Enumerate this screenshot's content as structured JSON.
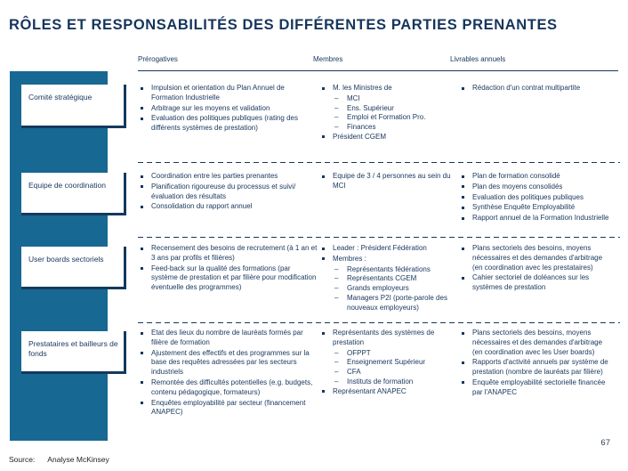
{
  "slide": {
    "title": "RÔLES ET RESPONSABILITÉS DES DIFFÉRENTES PARTIES PRENANTES",
    "source_label": "Source:",
    "source_value": "Analyse McKinsey",
    "page_number": "67"
  },
  "colors": {
    "sidebar_blue": "#176893",
    "navy_text": "#17365d"
  },
  "table": {
    "columns": [
      "Prérogatives",
      "Membres",
      "Livrables annuels"
    ],
    "rows": [
      {
        "label": "Comité stratégique",
        "prerogatives": [
          {
            "text": "Impulsion et orientation du Plan Annuel de Formation Industrielle",
            "level": 1
          },
          {
            "text": "Arbitrage sur les moyens et validation",
            "level": 1
          },
          {
            "text": "Evaluation des politiques publiques (rating des différents systèmes de prestation)",
            "level": 1
          }
        ],
        "membres": [
          {
            "text": "M. les Ministres de",
            "level": 1
          },
          {
            "text": "MCI",
            "level": 2
          },
          {
            "text": "Ens. Supérieur",
            "level": 2
          },
          {
            "text": "Emploi et Formation Pro.",
            "level": 2
          },
          {
            "text": "Finances",
            "level": 2
          },
          {
            "text": "Président CGEM",
            "level": 1
          }
        ],
        "livrables": [
          {
            "text": "Rédaction d'un contrat multipartite",
            "level": 1
          }
        ]
      },
      {
        "label": "Equipe de coordination",
        "prerogatives": [
          {
            "text": "Coordination entre les parties prenantes",
            "level": 1
          },
          {
            "text": "Planification rigoureuse du processus et suivi/évaluation des résultats",
            "level": 1
          },
          {
            "text": "Consolidation du rapport annuel",
            "level": 1
          }
        ],
        "membres": [
          {
            "text": "Equipe de 3 / 4 personnes au sein du MCI",
            "level": 1
          }
        ],
        "livrables": [
          {
            "text": "Plan de formation consolidé",
            "level": 1
          },
          {
            "text": "Plan des moyens consolidés",
            "level": 1
          },
          {
            "text": "Evaluation des politiques publiques",
            "level": 1
          },
          {
            "text": "Synthèse Enquête Employabilité",
            "level": 1
          },
          {
            "text": "Rapport annuel de la Formation Industrielle",
            "level": 1
          }
        ]
      },
      {
        "label": "User boards sectoriels",
        "prerogatives": [
          {
            "text": "Recensement des besoins de recrutement (à 1 an et 3 ans par profils et filières)",
            "level": 1
          },
          {
            "text": "Feed-back sur la qualité des formations (par système de prestation et par filière pour modification éventuelle des programmes)",
            "level": 1
          }
        ],
        "membres": [
          {
            "text": "Leader : Président Fédération",
            "level": 1
          },
          {
            "text": "Membres :",
            "level": 1
          },
          {
            "text": "Représentants fédérations",
            "level": 2
          },
          {
            "text": "Représentants CGEM",
            "level": 2
          },
          {
            "text": "Grands employeurs",
            "level": 2
          },
          {
            "text": "Managers P2I (porte-parole des nouveaux employeurs)",
            "level": 2
          }
        ],
        "livrables": [
          {
            "text": "Plans sectoriels des besoins, moyens nécessaires et des demandes d'arbitrage (en coordination avec les prestataires)",
            "level": 1
          },
          {
            "text": "Cahier sectoriel de doléances sur les systèmes de prestation",
            "level": 1
          }
        ]
      },
      {
        "label": "Prestataires et bailleurs de fonds",
        "prerogatives": [
          {
            "text": "Etat des lieux du nombre de lauréats formés par filière de formation",
            "level": 1
          },
          {
            "text": "Ajustement des effectifs et des programmes sur la base des requêtes adressées par les secteurs industriels",
            "level": 1
          },
          {
            "text": "Remontée des difficultés potentielles (e.g. budgets, contenu pédagogique, formateurs)",
            "level": 1
          },
          {
            "text": "Enquêtes employabilité par secteur (financement ANAPEC)",
            "level": 1
          }
        ],
        "membres": [
          {
            "text": "Représentants des systèmes de prestation",
            "level": 1
          },
          {
            "text": "OFPPT",
            "level": 2
          },
          {
            "text": "Enseignement Supérieur",
            "level": 2
          },
          {
            "text": "CFA",
            "level": 2
          },
          {
            "text": "Instituts de formation",
            "level": 2
          },
          {
            "text": "Représentant ANAPEC",
            "level": 1
          }
        ],
        "livrables": [
          {
            "text": "Plans sectoriels des besoins, moyens nécessaires et des demandes d'arbitrage (en coordination avec les User boards)",
            "level": 1
          },
          {
            "text": "Rapports d'activité annuels par système de prestation (nombre de lauréats par filière)",
            "level": 1
          },
          {
            "text": "Enquête employabilité sectorielle financée par l'ANAPEC",
            "level": 1
          }
        ]
      }
    ]
  }
}
